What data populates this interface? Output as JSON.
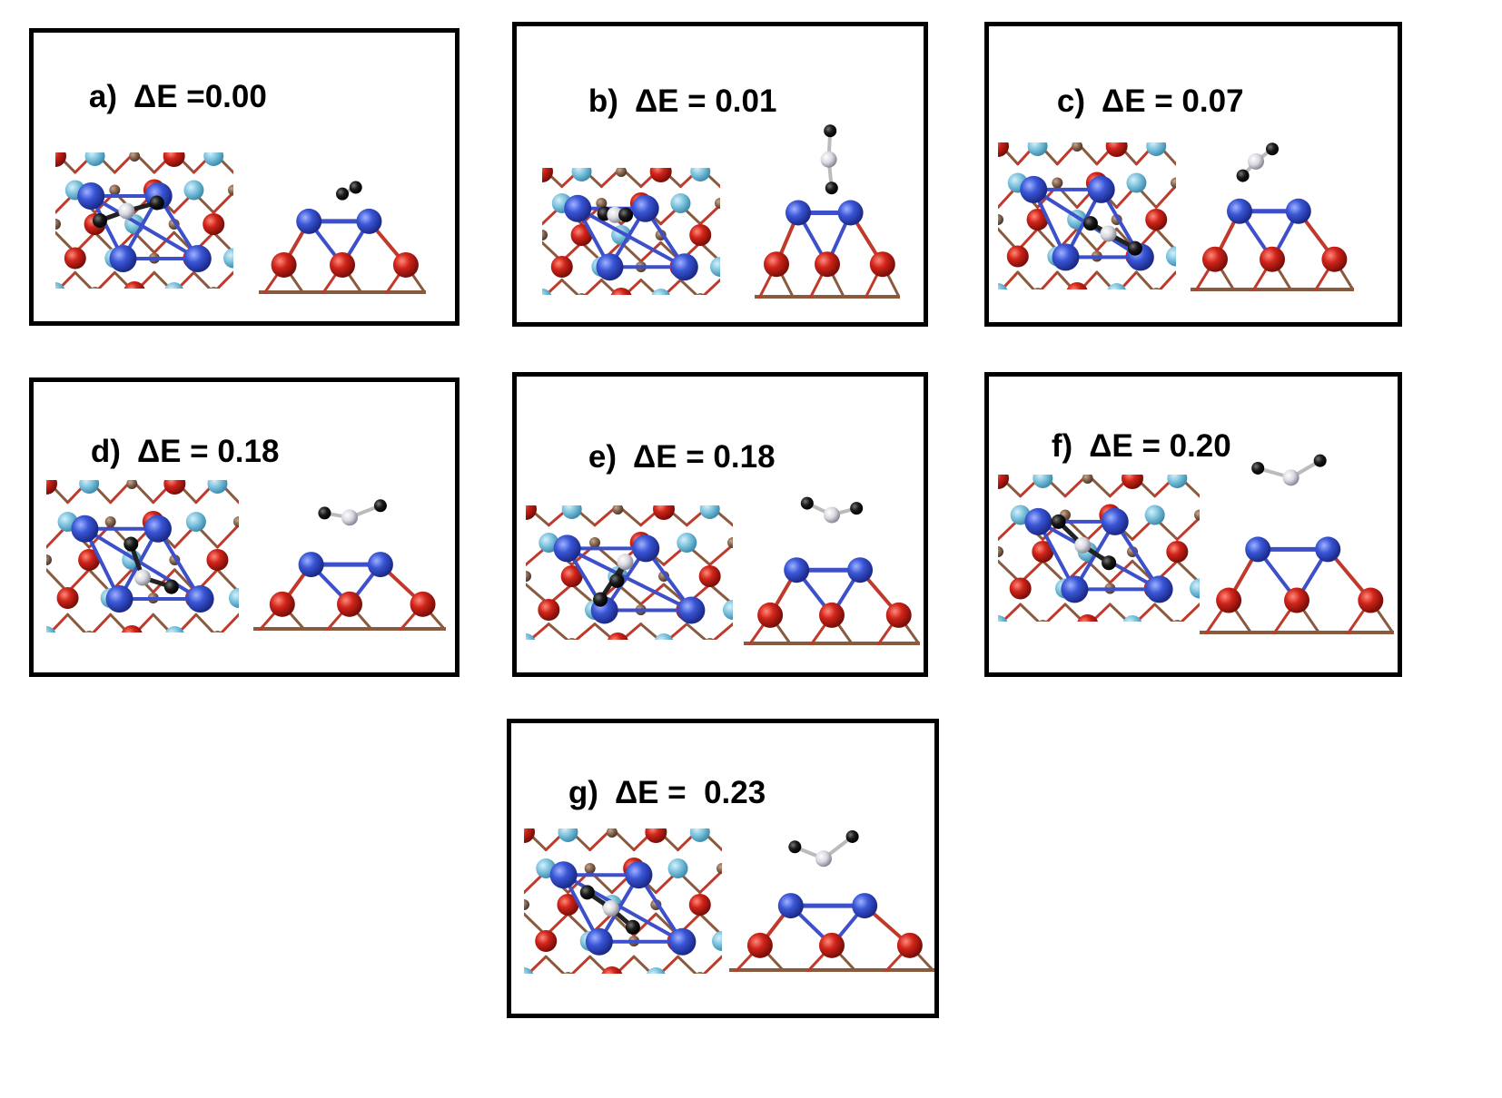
{
  "panels": [
    {
      "id": "a",
      "tag": "a)",
      "label": "ΔE =0.00"
    },
    {
      "id": "b",
      "tag": "b)",
      "label": "ΔE = 0.01"
    },
    {
      "id": "c",
      "tag": "c)",
      "label": "ΔE = 0.07"
    },
    {
      "id": "d",
      "tag": "d)",
      "label": "ΔE = 0.18"
    },
    {
      "id": "e",
      "tag": "e)",
      "label": "ΔE = 0.18"
    },
    {
      "id": "f",
      "tag": "f)",
      "label": "ΔE = 0.20"
    },
    {
      "id": "g",
      "tag": "g)",
      "label": "ΔE =  0.23"
    }
  ],
  "colors": {
    "frame": "#000000",
    "cluster_atom": "#3a56d6",
    "oxygen_atom": "#d0241a",
    "surface_metal_atom": "#8a6a52",
    "light_atom": "#7fc4de",
    "adsorbate_dark_atom": "#1a1a1a",
    "adsorbate_light_atom": "#d8d8e0",
    "bond": "#3d4fc9"
  }
}
